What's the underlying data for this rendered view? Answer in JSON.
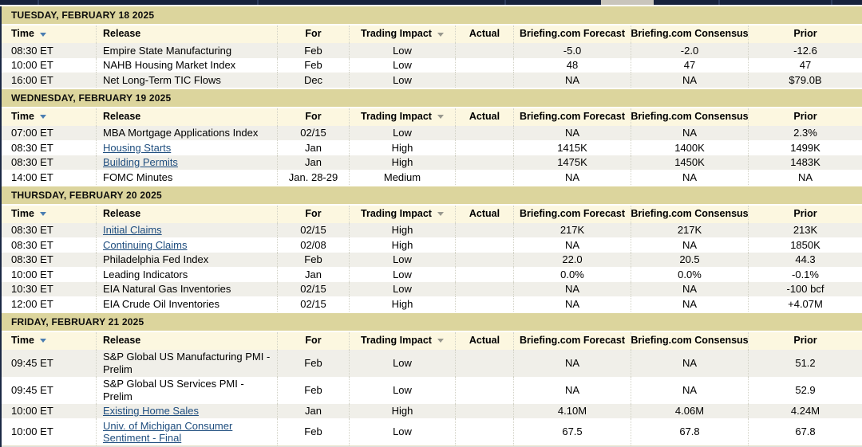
{
  "topbar": {
    "background_color": "#17223c",
    "highlight_segment_color": "#c9c5bc"
  },
  "calendar": {
    "link_color": "#1e4d7e",
    "day_band_color": "#dcd59d",
    "header_bg_color": "#fcf7e0",
    "stripe_row_color": "#f0efe9",
    "time_sort_arrow_color": "#4a7db1",
    "impact_sort_arrow_color": "#98988e",
    "columns": [
      {
        "id": "time",
        "label": "Time",
        "sort": "blue"
      },
      {
        "id": "release",
        "label": "Release",
        "sort": null
      },
      {
        "id": "for",
        "label": "For",
        "sort": null
      },
      {
        "id": "impact",
        "label": "Trading Impact",
        "sort": "gray"
      },
      {
        "id": "actual",
        "label": "Actual",
        "sort": null
      },
      {
        "id": "forecast",
        "label": "Briefing.com Forecast",
        "sort": null
      },
      {
        "id": "consensus",
        "label": "Briefing.com Consensus",
        "sort": null
      },
      {
        "id": "prior",
        "label": "Prior",
        "sort": null
      }
    ],
    "sections": [
      {
        "date_header": "TUESDAY, FEBRUARY 18 2025",
        "rows": [
          {
            "time": "08:30 ET",
            "release": "Empire State Manufacturing",
            "link": false,
            "for": "Feb",
            "impact": "Low",
            "actual": "",
            "forecast": "-5.0",
            "consensus": "-2.0",
            "prior": "-12.6"
          },
          {
            "time": "10:00 ET",
            "release": "NAHB Housing Market Index",
            "link": false,
            "for": "Feb",
            "impact": "Low",
            "actual": "",
            "forecast": "48",
            "consensus": "47",
            "prior": "47"
          },
          {
            "time": "16:00 ET",
            "release": "Net Long-Term TIC Flows",
            "link": false,
            "for": "Dec",
            "impact": "Low",
            "actual": "",
            "forecast": "NA",
            "consensus": "NA",
            "prior": "$79.0B"
          }
        ]
      },
      {
        "date_header": "WEDNESDAY, FEBRUARY 19 2025",
        "rows": [
          {
            "time": "07:00 ET",
            "release": "MBA Mortgage Applications Index",
            "link": false,
            "for": "02/15",
            "impact": "Low",
            "actual": "",
            "forecast": "NA",
            "consensus": "NA",
            "prior": "2.3%"
          },
          {
            "time": "08:30 ET",
            "release": "Housing Starts",
            "link": true,
            "for": "Jan",
            "impact": "High",
            "actual": "",
            "forecast": "1415K",
            "consensus": "1400K",
            "prior": "1499K"
          },
          {
            "time": "08:30 ET",
            "release": "Building Permits",
            "link": true,
            "for": "Jan",
            "impact": "High",
            "actual": "",
            "forecast": "1475K",
            "consensus": "1450K",
            "prior": "1483K"
          },
          {
            "time": "14:00 ET",
            "release": "FOMC Minutes",
            "link": false,
            "for": "Jan. 28-29",
            "impact": "Medium",
            "actual": "",
            "forecast": "NA",
            "consensus": "NA",
            "prior": "NA"
          }
        ]
      },
      {
        "date_header": "THURSDAY, FEBRUARY 20 2025",
        "rows": [
          {
            "time": "08:30 ET",
            "release": "Initial Claims",
            "link": true,
            "for": "02/15",
            "impact": "High",
            "actual": "",
            "forecast": "217K",
            "consensus": "217K",
            "prior": "213K"
          },
          {
            "time": "08:30 ET",
            "release": "Continuing Claims",
            "link": true,
            "for": "02/08",
            "impact": "High",
            "actual": "",
            "forecast": "NA",
            "consensus": "NA",
            "prior": "1850K"
          },
          {
            "time": "08:30 ET",
            "release": "Philadelphia Fed Index",
            "link": false,
            "for": "Feb",
            "impact": "Low",
            "actual": "",
            "forecast": "22.0",
            "consensus": "20.5",
            "prior": "44.3"
          },
          {
            "time": "10:00 ET",
            "release": "Leading Indicators",
            "link": false,
            "for": "Jan",
            "impact": "Low",
            "actual": "",
            "forecast": "0.0%",
            "consensus": "0.0%",
            "prior": "-0.1%"
          },
          {
            "time": "10:30 ET",
            "release": "EIA Natural Gas Inventories",
            "link": false,
            "for": "02/15",
            "impact": "Low",
            "actual": "",
            "forecast": "NA",
            "consensus": "NA",
            "prior": "-100 bcf"
          },
          {
            "time": "12:00 ET",
            "release": "EIA Crude Oil Inventories",
            "link": false,
            "for": "02/15",
            "impact": "High",
            "actual": "",
            "forecast": "NA",
            "consensus": "NA",
            "prior": "+4.07M"
          }
        ]
      },
      {
        "date_header": "FRIDAY, FEBRUARY 21 2025",
        "rows": [
          {
            "time": "09:45 ET",
            "release": "S&P Global US Manufacturing PMI - Prelim",
            "link": false,
            "for": "Feb",
            "impact": "Low",
            "actual": "",
            "forecast": "NA",
            "consensus": "NA",
            "prior": "51.2"
          },
          {
            "time": "09:45 ET",
            "release": "S&P Global US Services PMI - Prelim",
            "link": false,
            "for": "Feb",
            "impact": "Low",
            "actual": "",
            "forecast": "NA",
            "consensus": "NA",
            "prior": "52.9"
          },
          {
            "time": "10:00 ET",
            "release": "Existing Home Sales",
            "link": true,
            "for": "Jan",
            "impact": "High",
            "actual": "",
            "forecast": "4.10M",
            "consensus": "4.06M",
            "prior": "4.24M"
          },
          {
            "time": "10:00 ET",
            "release": "Univ. of Michigan Consumer Sentiment - Final",
            "link": true,
            "for": "Feb",
            "impact": "Low",
            "actual": "",
            "forecast": "67.5",
            "consensus": "67.8",
            "prior": "67.8"
          }
        ]
      }
    ]
  }
}
